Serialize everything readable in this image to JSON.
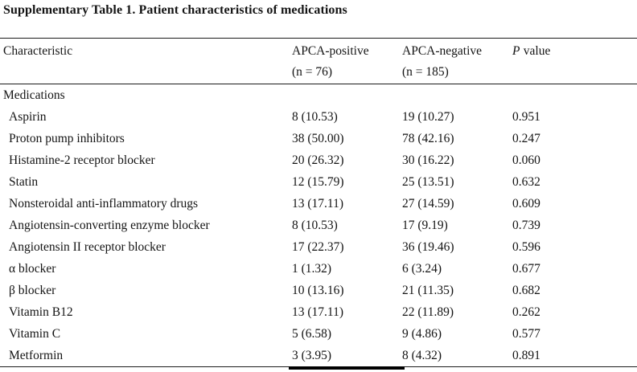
{
  "title": "Supplementary Table 1. Patient characteristics of medications",
  "table": {
    "columns": {
      "characteristic": "Characteristic",
      "group1": "APCA-positive",
      "group1_n": "(n = 76)",
      "group2": "APCA-negative",
      "group2_n": "(n = 185)",
      "p_symbol": "P",
      "p_word": "value"
    },
    "section": "Medications",
    "rows": [
      {
        "label": "Aspirin",
        "positive": "8 (10.53)",
        "negative": "19 (10.27)",
        "p": "0.951"
      },
      {
        "label": "Proton pump inhibitors",
        "positive": "38 (50.00)",
        "negative": "78 (42.16)",
        "p": "0.247"
      },
      {
        "label": "Histamine-2 receptor blocker",
        "positive": "20 (26.32)",
        "negative": "30 (16.22)",
        "p": "0.060"
      },
      {
        "label": "Statin",
        "positive": "12 (15.79)",
        "negative": "25 (13.51)",
        "p": "0.632"
      },
      {
        "label": "Nonsteroidal anti-inflammatory drugs",
        "positive": "13 (17.11)",
        "negative": "27 (14.59)",
        "p": "0.609"
      },
      {
        "label": "Angiotensin-converting enzyme blocker",
        "positive": "8 (10.53)",
        "negative": "17 (9.19)",
        "p": "0.739"
      },
      {
        "label": "Angiotensin II receptor blocker",
        "positive": "17 (22.37)",
        "negative": "36 (19.46)",
        "p": "0.596"
      },
      {
        "label": "α blocker",
        "positive": "1 (1.32)",
        "negative": "6 (3.24)",
        "p": "0.677"
      },
      {
        "label": "β blocker",
        "positive": "10 (13.16)",
        "negative": "21 (11.35)",
        "p": "0.682"
      },
      {
        "label": "Vitamin B12",
        "positive": "13 (17.11)",
        "negative": "22 (11.89)",
        "p": "0.262"
      },
      {
        "label": "Vitamin C",
        "positive": "5 (6.58)",
        "negative": "9 (4.86)",
        "p": "0.577"
      },
      {
        "label": "Metformin",
        "positive": "3 (3.95)",
        "negative": "8 (4.32)",
        "p": "0.891"
      }
    ]
  },
  "colors": {
    "background": "#ffffff",
    "text": "#141414",
    "rule": "#1a1a1a"
  }
}
